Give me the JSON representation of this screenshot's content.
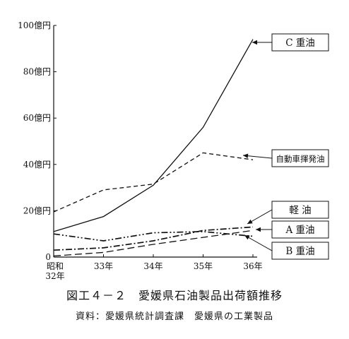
{
  "chart_data": {
    "type": "line",
    "categories": [
      "昭和\n32年",
      "33年",
      "34年",
      "35年",
      "36年"
    ],
    "ylim": [
      0,
      100
    ],
    "yticks": [
      {
        "value": 0,
        "label": "0"
      },
      {
        "value": 20,
        "label": "20億円"
      },
      {
        "value": 40,
        "label": "40億円"
      },
      {
        "value": 60,
        "label": "60億円"
      },
      {
        "value": 80,
        "label": "80億円"
      },
      {
        "value": 100,
        "label": "100億円"
      }
    ],
    "series": [
      {
        "name": "C 重油",
        "values": [
          11,
          17.5,
          31,
          56,
          94
        ],
        "dash": "solid",
        "color": "#111111"
      },
      {
        "name": "自動車揮発油",
        "values": [
          19.5,
          29,
          31.5,
          45,
          42
        ],
        "dash": "dashed",
        "color": "#111111"
      },
      {
        "name": "軽 油",
        "values": [
          3,
          4,
          7,
          11.5,
          13
        ],
        "dash": "dashdot",
        "color": "#111111"
      },
      {
        "name": "A 重油",
        "values": [
          0.5,
          2,
          5.5,
          8.5,
          11.5
        ],
        "dash": "longdash",
        "color": "#111111"
      },
      {
        "name": "B 重油",
        "values": [
          10,
          7,
          10.5,
          11,
          9
        ],
        "dash": "dashdotdot",
        "color": "#111111"
      }
    ],
    "grid": false,
    "legend": "right, boxed labels with arrows"
  },
  "figure": {
    "title_no": "図工４－２",
    "title": "愛媛県石油製品出荷額推移",
    "source": "資料：愛媛県統計調査課　愛媛県の工業製品"
  }
}
